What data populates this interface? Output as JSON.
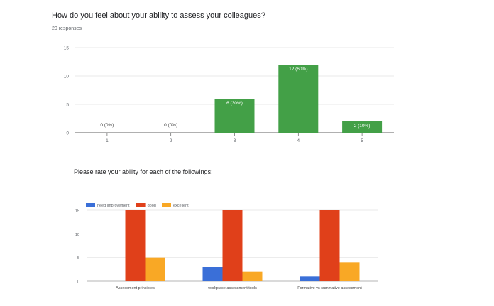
{
  "question": {
    "title": "How do you feel about your ability to assess your colleagues?",
    "responses": "20 responses"
  },
  "chart_data": [
    {
      "type": "bar",
      "title": "",
      "categories": [
        "1",
        "2",
        "3",
        "4",
        "5"
      ],
      "values": [
        0,
        0,
        6,
        12,
        2
      ],
      "value_labels": [
        "0 (0%)",
        "0 (0%)",
        "6 (30%)",
        "12 (60%)",
        "2 (10%)"
      ],
      "ylim": [
        0,
        15
      ],
      "yticks": [
        0,
        5,
        10,
        15
      ],
      "color": "#43a047",
      "grid": true
    },
    {
      "type": "bar",
      "title": "Please rate your ability for each of the followings:",
      "categories": [
        "Assessment principles",
        "workplace assessment tools",
        "Formative vs summative assessment"
      ],
      "series": [
        {
          "name": "need improvement",
          "values": [
            0,
            3,
            1
          ],
          "color": "#3a6fd8"
        },
        {
          "name": "good",
          "values": [
            15,
            15,
            15
          ],
          "color": "#e0401a"
        },
        {
          "name": "excellent",
          "values": [
            5,
            2,
            4
          ],
          "color": "#f9a825"
        }
      ],
      "ylim": [
        0,
        15
      ],
      "yticks": [
        0,
        5,
        10,
        15
      ],
      "legend": "top-left",
      "grid": true
    }
  ]
}
